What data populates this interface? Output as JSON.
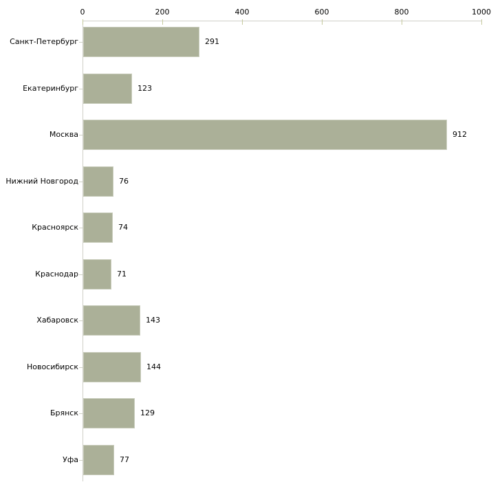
{
  "chart_data": {
    "type": "bar",
    "orientation": "horizontal",
    "title": "",
    "xlabel": "",
    "ylabel": "",
    "categories": [
      "Санкт-Петербург",
      "Екатеринбург",
      "Москва",
      "Нижний Новгород",
      "Красноярск",
      "Краснодар",
      "Хабаровск",
      "Новосибирск",
      "Брянск",
      "Уфа"
    ],
    "values": [
      291,
      123,
      912,
      76,
      74,
      71,
      143,
      144,
      129,
      77
    ],
    "value_labels": [
      "291",
      "123",
      "912",
      "76",
      "74",
      "71",
      "143",
      "144",
      "129",
      "77"
    ],
    "xlim": [
      0,
      1000
    ],
    "x_ticks": [
      0,
      200,
      400,
      600,
      800,
      1000
    ],
    "x_tick_labels": [
      "0",
      "200",
      "400",
      "600",
      "800",
      "1000"
    ],
    "grid": false,
    "legend": "none",
    "axis_position": "top",
    "colors": {
      "bar_fill": "#abb098",
      "bar_border": "#c8ccbb",
      "axis_line": "#cfcfc7",
      "axis_tick": "#c5c99c",
      "category_tick": "#cfd1c4",
      "text": "#000000",
      "background": "#ffffff"
    }
  }
}
